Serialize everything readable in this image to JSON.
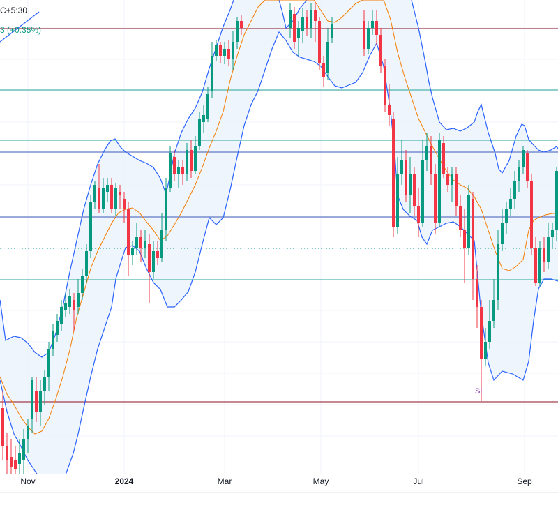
{
  "header": {
    "timezone_fragment": "C+5:30",
    "change_fragment": "3 (+0.35%)"
  },
  "colors": {
    "up": "#089981",
    "down": "#f23645",
    "basis": "#f57c00",
    "bands": "#2962ff",
    "band_fill": "#e8f1fb",
    "level_red": "#8e1020",
    "level_teal": "#26a69a",
    "level_blue": "#3d5ab8",
    "level_dotted": "#089981",
    "grid": "#f0f3fa",
    "axis_text": "#131722",
    "sl": "#7b1fa2"
  },
  "chart_data": {
    "type": "candlestick",
    "timeframe": "weekly",
    "x_ticks": [
      "Nov",
      "2024",
      "Mar",
      "May",
      "Jul",
      "Sep"
    ],
    "grid": true,
    "annotations": [
      "SL"
    ],
    "overlays": [
      "Bollinger Bands (upper/lower)",
      "Bollinger basis",
      "horizontal levels"
    ]
  }
}
